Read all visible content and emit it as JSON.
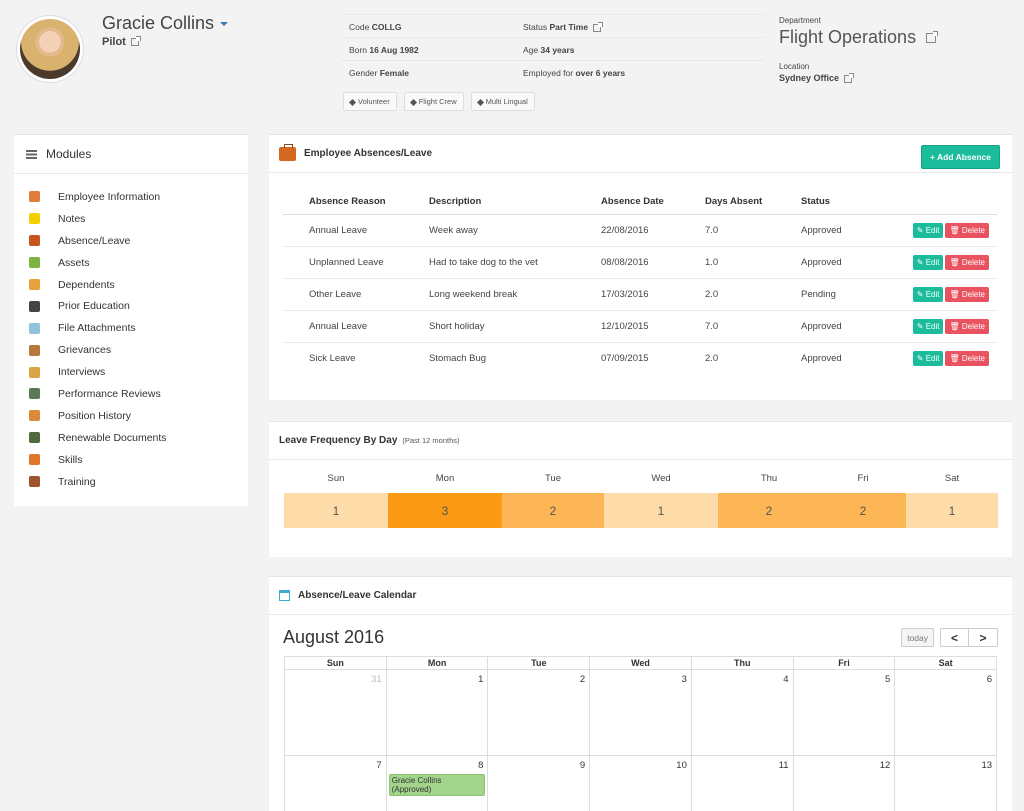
{
  "employee": {
    "name": "Gracie Collins",
    "title": "Pilot",
    "code_label": "Code",
    "code": "COLLG",
    "status_label": "Status",
    "status": "Part Time",
    "born_label": "Born",
    "born": "16 Aug 1982",
    "age_label": "Age",
    "age": "34 years",
    "gender_label": "Gender",
    "gender": "Female",
    "employed_label": "Employed for",
    "employed": "over 6 years",
    "tags": [
      "Volunteer",
      "Flight Crew",
      "Multi Lingual"
    ],
    "department_label": "Department",
    "department": "Flight Operations",
    "location_label": "Location",
    "location": "Sydney Office"
  },
  "modules": {
    "title": "Modules",
    "items": [
      {
        "label": "Employee Information",
        "icon": "employee-info-icon",
        "color": "#e07b39"
      },
      {
        "label": "Notes",
        "icon": "notes-icon",
        "color": "#f5d000"
      },
      {
        "label": "Absence/Leave",
        "icon": "briefcase-icon",
        "color": "#c8551e"
      },
      {
        "label": "Assets",
        "icon": "assets-icon",
        "color": "#7cb342"
      },
      {
        "label": "Dependents",
        "icon": "dependents-icon",
        "color": "#e9a23b"
      },
      {
        "label": "Prior Education",
        "icon": "graduation-cap-icon",
        "color": "#444444"
      },
      {
        "label": "File Attachments",
        "icon": "file-attachments-icon",
        "color": "#8fc3d9"
      },
      {
        "label": "Grievances",
        "icon": "grievances-icon",
        "color": "#b5793a"
      },
      {
        "label": "Interviews",
        "icon": "interviews-icon",
        "color": "#d9a441"
      },
      {
        "label": "Performance Reviews",
        "icon": "performance-reviews-icon",
        "color": "#5a7a55"
      },
      {
        "label": "Position History",
        "icon": "position-history-icon",
        "color": "#d98b3a"
      },
      {
        "label": "Renewable Documents",
        "icon": "renewable-documents-icon",
        "color": "#4f6b3e"
      },
      {
        "label": "Skills",
        "icon": "skills-icon",
        "color": "#e0762a"
      },
      {
        "label": "Training",
        "icon": "training-icon",
        "color": "#a0522d"
      }
    ]
  },
  "absences": {
    "title": "Employee Absences/Leave",
    "add_label": "+ Add Absence",
    "columns": [
      "Absence Reason",
      "Description",
      "Absence Date",
      "Days Absent",
      "Status"
    ],
    "edit_label": "Edit",
    "delete_label": "Delete",
    "rows": [
      {
        "reason": "Annual Leave",
        "description": "Week away",
        "date": "22/08/2016",
        "days": "7.0",
        "status": "Approved"
      },
      {
        "reason": "Unplanned Leave",
        "description": "Had to take dog to the vet",
        "date": "08/08/2016",
        "days": "1.0",
        "status": "Approved"
      },
      {
        "reason": "Other Leave",
        "description": "Long weekend break",
        "date": "17/03/2016",
        "days": "2.0",
        "status": "Pending"
      },
      {
        "reason": "Annual Leave",
        "description": "Short holiday",
        "date": "12/10/2015",
        "days": "7.0",
        "status": "Approved"
      },
      {
        "reason": "Sick Leave",
        "description": "Stomach Bug",
        "date": "07/09/2015",
        "days": "2.0",
        "status": "Approved"
      }
    ]
  },
  "frequency": {
    "title": "Leave Frequency By Day",
    "subtitle": "(Past 12 months)",
    "days": [
      {
        "day": "Sun",
        "count": "1",
        "color": "#fddcaa"
      },
      {
        "day": "Mon",
        "count": "3",
        "color": "#fb9a14"
      },
      {
        "day": "Tue",
        "count": "2",
        "color": "#fdb655"
      },
      {
        "day": "Wed",
        "count": "1",
        "color": "#fddcaa"
      },
      {
        "day": "Thu",
        "count": "2",
        "color": "#fdb655"
      },
      {
        "day": "Fri",
        "count": "2",
        "color": "#fdb655"
      },
      {
        "day": "Sat",
        "count": "1",
        "color": "#fddcaa"
      }
    ]
  },
  "calendar": {
    "title": "Absence/Leave Calendar",
    "month": "August 2016",
    "today_label": "today",
    "prev_label": "<",
    "next_label": ">",
    "weekdays": [
      "Sun",
      "Mon",
      "Tue",
      "Wed",
      "Thu",
      "Fri",
      "Sat"
    ],
    "weeks": [
      [
        {
          "n": "31",
          "other": true
        },
        {
          "n": "1"
        },
        {
          "n": "2"
        },
        {
          "n": "3"
        },
        {
          "n": "4"
        },
        {
          "n": "5"
        },
        {
          "n": "6"
        }
      ],
      [
        {
          "n": "7"
        },
        {
          "n": "8",
          "event": "Gracie Collins (Approved)"
        },
        {
          "n": "9"
        },
        {
          "n": "10"
        },
        {
          "n": "11"
        },
        {
          "n": "12"
        },
        {
          "n": "13"
        }
      ]
    ]
  }
}
